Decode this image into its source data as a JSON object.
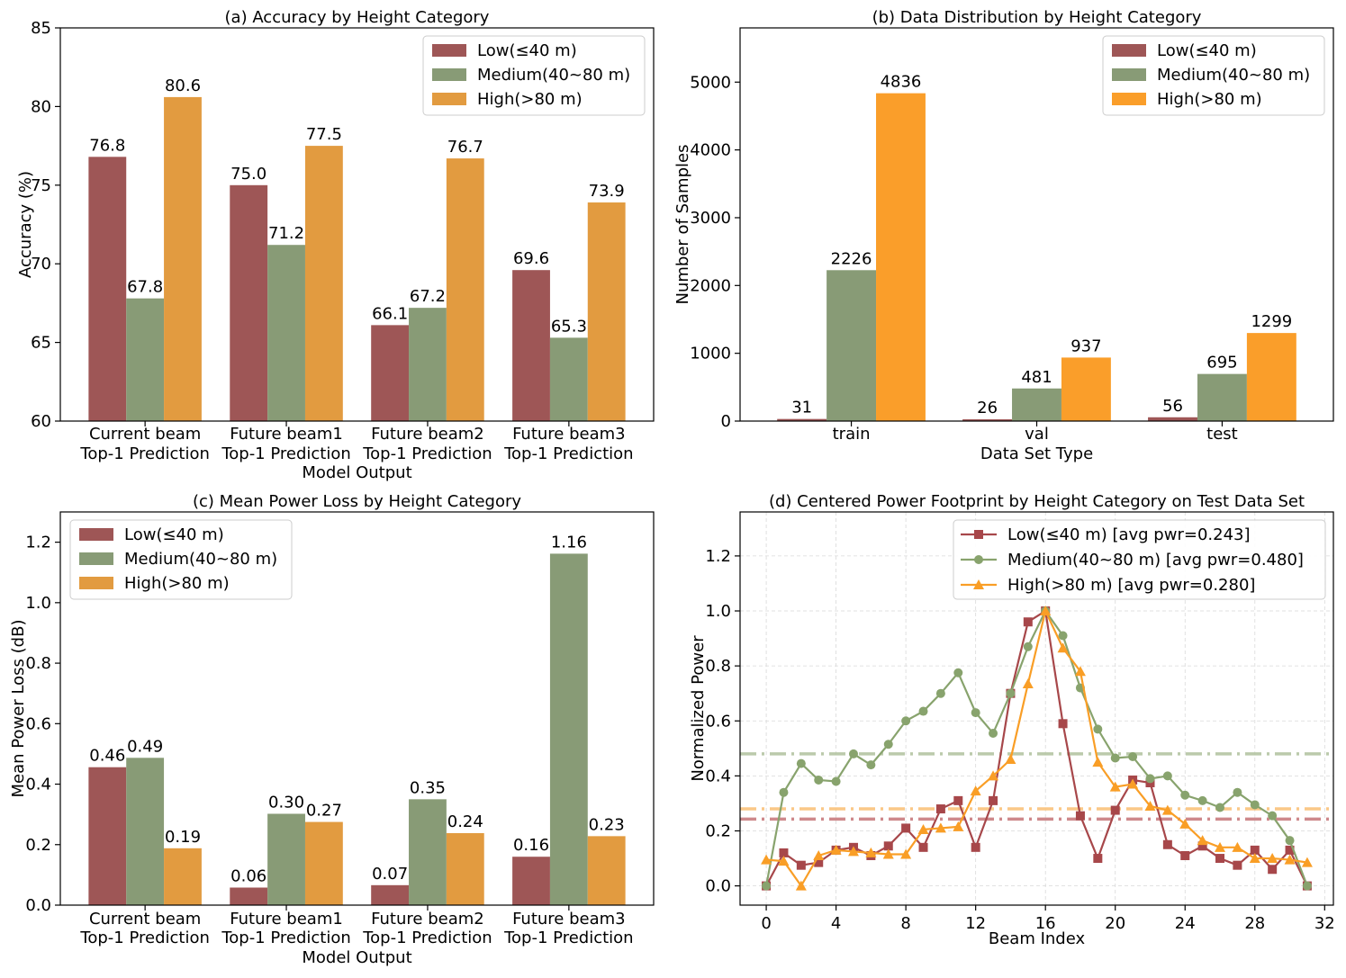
{
  "colors": {
    "low_bar": "#9E5656",
    "medium_bar": "#889B76",
    "high_bar": "#E29B40",
    "high_bar_b": "#FA9E2A",
    "low_line": "#A7474A",
    "medium_line": "#88A36D",
    "high_line": "#F99E26"
  },
  "chart_data": [
    {
      "type": "bar",
      "title": "(a) Accuracy by Height Category",
      "xlabel": "Model Output",
      "ylabel": "Accuracy (%)",
      "categories": [
        "Current beam\nTop-1 Prediction",
        "Future beam1\nTop-1 Prediction",
        "Future beam2\nTop-1 Prediction",
        "Future beam3\nTop-1 Prediction"
      ],
      "ylim": [
        60,
        85
      ],
      "yticks": [
        60,
        65,
        70,
        75,
        80,
        85
      ],
      "legend_loc": "top-right",
      "series": [
        {
          "name": "Low(≤40 m)",
          "values": [
            76.8,
            75.0,
            66.1,
            69.6
          ],
          "labels": [
            "76.8",
            "75.0",
            "66.1",
            "69.6"
          ]
        },
        {
          "name": "Medium(40~80 m)",
          "values": [
            67.8,
            71.2,
            67.2,
            65.3
          ],
          "labels": [
            "67.8",
            "71.2",
            "67.2",
            "65.3"
          ]
        },
        {
          "name": "High(>80 m)",
          "values": [
            80.6,
            77.5,
            76.7,
            73.9
          ],
          "labels": [
            "80.6",
            "77.5",
            "76.7",
            "73.9"
          ]
        }
      ]
    },
    {
      "type": "bar",
      "title": "(b) Data Distribution by Height Category",
      "xlabel": "Data Set Type",
      "ylabel": "Number of Samples",
      "categories": [
        "train",
        "val",
        "test"
      ],
      "ylim": [
        0,
        5800
      ],
      "yticks": [
        0,
        1000,
        2000,
        3000,
        4000,
        5000
      ],
      "legend_loc": "top-right",
      "series": [
        {
          "name": "Low(≤40 m)",
          "values": [
            31,
            26,
            56
          ],
          "labels": [
            "31",
            "26",
            "56"
          ]
        },
        {
          "name": "Medium(40~80 m)",
          "values": [
            2226,
            481,
            695
          ],
          "labels": [
            "2226",
            "481",
            "695"
          ]
        },
        {
          "name": "High(>80 m)",
          "values": [
            4836,
            937,
            1299
          ],
          "labels": [
            "4836",
            "937",
            "1299"
          ]
        }
      ]
    },
    {
      "type": "bar",
      "title": "(c) Mean Power Loss by Height Category",
      "xlabel": "Model Output",
      "ylabel": "Mean Power Loss (dB)",
      "categories": [
        "Current beam\nTop-1 Prediction",
        "Future beam1\nTop-1 Prediction",
        "Future beam2\nTop-1 Prediction",
        "Future beam3\nTop-1 Prediction"
      ],
      "ylim": [
        0,
        1.3
      ],
      "yticks": [
        0.0,
        0.2,
        0.4,
        0.6,
        0.8,
        1.0,
        1.2
      ],
      "ytick_labels": [
        "0.0",
        "0.2",
        "0.4",
        "0.6",
        "0.8",
        "1.0",
        "1.2"
      ],
      "legend_loc": "top-left",
      "series": [
        {
          "name": "Low(≤40 m)",
          "values": [
            0.456,
            0.058,
            0.066,
            0.16
          ],
          "labels": [
            "0.46",
            "0.06",
            "0.07",
            "0.16"
          ]
        },
        {
          "name": "Medium(40~80 m)",
          "values": [
            0.487,
            0.302,
            0.35,
            1.162
          ],
          "labels": [
            "0.49",
            "0.30",
            "0.35",
            "1.16"
          ]
        },
        {
          "name": "High(>80 m)",
          "values": [
            0.188,
            0.275,
            0.238,
            0.228
          ],
          "labels": [
            "0.19",
            "0.27",
            "0.24",
            "0.23"
          ]
        }
      ]
    },
    {
      "type": "line",
      "title": "(d) Centered Power Footprint by Height Category on Test Data Set",
      "xlabel": "Beam Index",
      "ylabel": "Normalized Power",
      "xlim": [
        -1.5,
        32.5
      ],
      "ylim": [
        -0.07,
        1.36
      ],
      "xticks": [
        0,
        4,
        8,
        12,
        16,
        20,
        24,
        28,
        32
      ],
      "yticks": [
        0.0,
        0.2,
        0.4,
        0.6,
        0.8,
        1.0,
        1.2
      ],
      "ytick_labels": [
        "0.0",
        "0.2",
        "0.4",
        "0.6",
        "0.8",
        "1.0",
        "1.2"
      ],
      "grid": true,
      "legend_loc": "top-right",
      "x": [
        0,
        1,
        2,
        3,
        4,
        5,
        6,
        7,
        8,
        9,
        10,
        11,
        12,
        13,
        14,
        15,
        16,
        17,
        18,
        19,
        20,
        21,
        22,
        23,
        24,
        25,
        26,
        27,
        28,
        29,
        30,
        31
      ],
      "series": [
        {
          "name": "Low(≤40 m) [avg pwr=0.243]",
          "marker": "square",
          "avg": 0.243,
          "values": [
            0.0,
            0.12,
            0.075,
            0.085,
            0.13,
            0.14,
            0.11,
            0.145,
            0.21,
            0.14,
            0.28,
            0.31,
            0.14,
            0.31,
            0.7,
            0.96,
            1.0,
            0.59,
            0.255,
            0.1,
            0.275,
            0.385,
            0.375,
            0.15,
            0.11,
            0.145,
            0.1,
            0.075,
            0.13,
            0.06,
            0.13,
            0.0
          ]
        },
        {
          "name": "Medium(40~80 m) [avg pwr=0.480]",
          "marker": "circle",
          "avg": 0.48,
          "values": [
            0.0,
            0.34,
            0.445,
            0.385,
            0.38,
            0.48,
            0.44,
            0.515,
            0.6,
            0.635,
            0.7,
            0.775,
            0.63,
            0.555,
            0.7,
            0.87,
            1.0,
            0.91,
            0.72,
            0.57,
            0.465,
            0.47,
            0.39,
            0.4,
            0.33,
            0.31,
            0.285,
            0.34,
            0.295,
            0.255,
            0.165,
            0.0
          ]
        },
        {
          "name": "High(>80 m) [avg pwr=0.280]",
          "marker": "triangle",
          "avg": 0.28,
          "values": [
            0.095,
            0.09,
            0.0,
            0.11,
            0.13,
            0.125,
            0.12,
            0.115,
            0.115,
            0.205,
            0.21,
            0.215,
            0.345,
            0.4,
            0.46,
            0.735,
            1.0,
            0.865,
            0.78,
            0.45,
            0.36,
            0.37,
            0.29,
            0.275,
            0.225,
            0.165,
            0.14,
            0.14,
            0.1,
            0.1,
            0.095,
            0.085
          ]
        }
      ]
    }
  ]
}
